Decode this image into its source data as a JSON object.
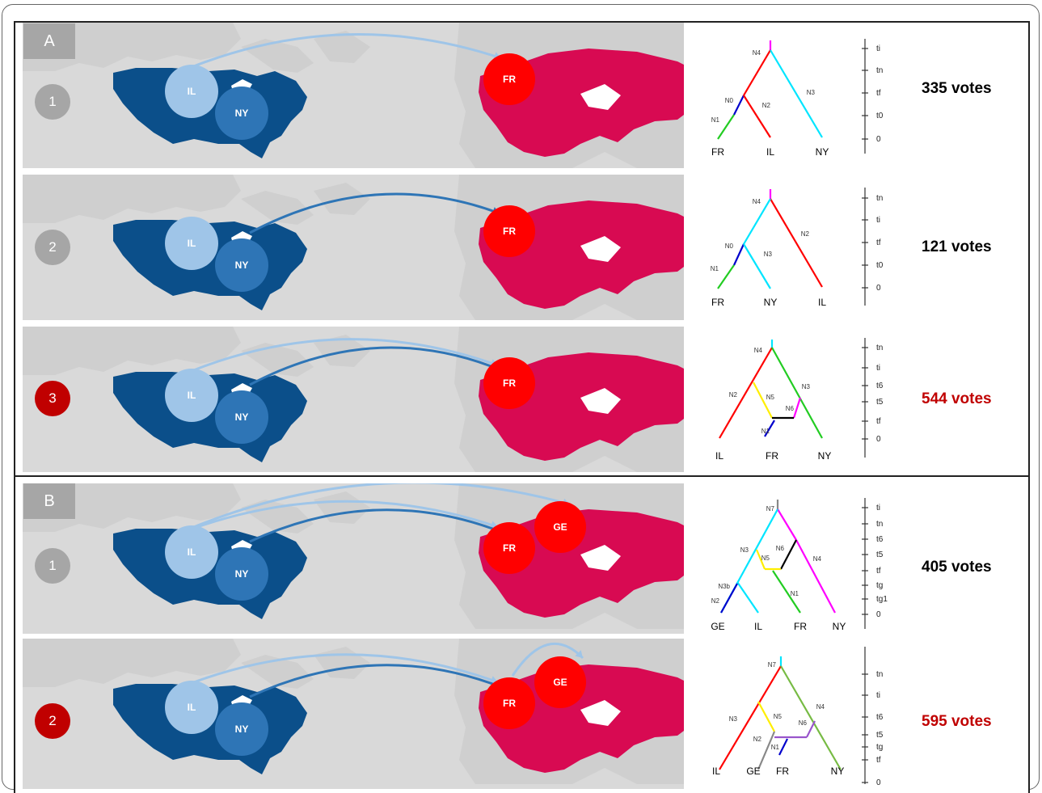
{
  "panels": [
    {
      "label": "A",
      "rows": [
        {
          "number": "1",
          "votes": "335 votes",
          "highlight": false,
          "tree_leaves": [
            "FR",
            "IL",
            "NY"
          ],
          "tree_nodes": [
            "N4",
            "N0",
            "N2",
            "N3",
            "N1"
          ],
          "time_ticks": [
            "ti",
            "tn",
            "tf",
            "t0",
            "0"
          ]
        },
        {
          "number": "2",
          "votes": "121 votes",
          "highlight": false,
          "tree_leaves": [
            "FR",
            "NY",
            "IL"
          ],
          "tree_nodes": [
            "N4",
            "N2",
            "N0",
            "N3",
            "N1"
          ],
          "time_ticks": [
            "tn",
            "ti",
            "tf",
            "t0",
            "0"
          ]
        },
        {
          "number": "3",
          "votes": "544 votes",
          "highlight": true,
          "tree_leaves": [
            "IL",
            "FR",
            "NY"
          ],
          "tree_nodes": [
            "N4",
            "N3",
            "N2",
            "N5",
            "N6",
            "N1"
          ],
          "time_ticks": [
            "tn",
            "ti",
            "t6",
            "t5",
            "tf",
            "0"
          ]
        }
      ]
    },
    {
      "label": "B",
      "rows": [
        {
          "number": "1",
          "votes": "405 votes",
          "highlight": false,
          "tree_leaves": [
            "GE",
            "IL",
            "FR",
            "NY"
          ],
          "tree_nodes": [
            "N7",
            "N3",
            "N6",
            "N5",
            "N4",
            "N3b",
            "N2",
            "N1"
          ],
          "time_ticks": [
            "ti",
            "tn",
            "t6",
            "t5",
            "tf",
            "tg",
            "tg1",
            "0"
          ]
        },
        {
          "number": "2",
          "votes": "595 votes",
          "highlight": true,
          "tree_leaves": [
            "IL",
            "GE",
            "FR",
            "NY"
          ],
          "tree_nodes": [
            "N7",
            "N4",
            "N3",
            "N5",
            "N6",
            "N2",
            "N1"
          ],
          "time_ticks": [
            "tn",
            "ti",
            "t6",
            "t5",
            "tg",
            "tf",
            "0"
          ]
        }
      ]
    }
  ],
  "map_labels": {
    "il": "IL",
    "ny": "NY",
    "fr": "FR",
    "ge": "GE"
  },
  "colors": {
    "usa": "#0b4f8a",
    "il_circle": "#9fc5e8",
    "ny_circle": "#2e75b6",
    "europe": "#d80a52",
    "fr_circle": "#ff0000",
    "ge_circle": "#ff0000",
    "land": "#d9d9d9",
    "arrow_light": "#9fc5e8",
    "arrow_dark": "#2e75b6",
    "highlight": "#c00000",
    "badge_grey": "#a6a6a6"
  }
}
